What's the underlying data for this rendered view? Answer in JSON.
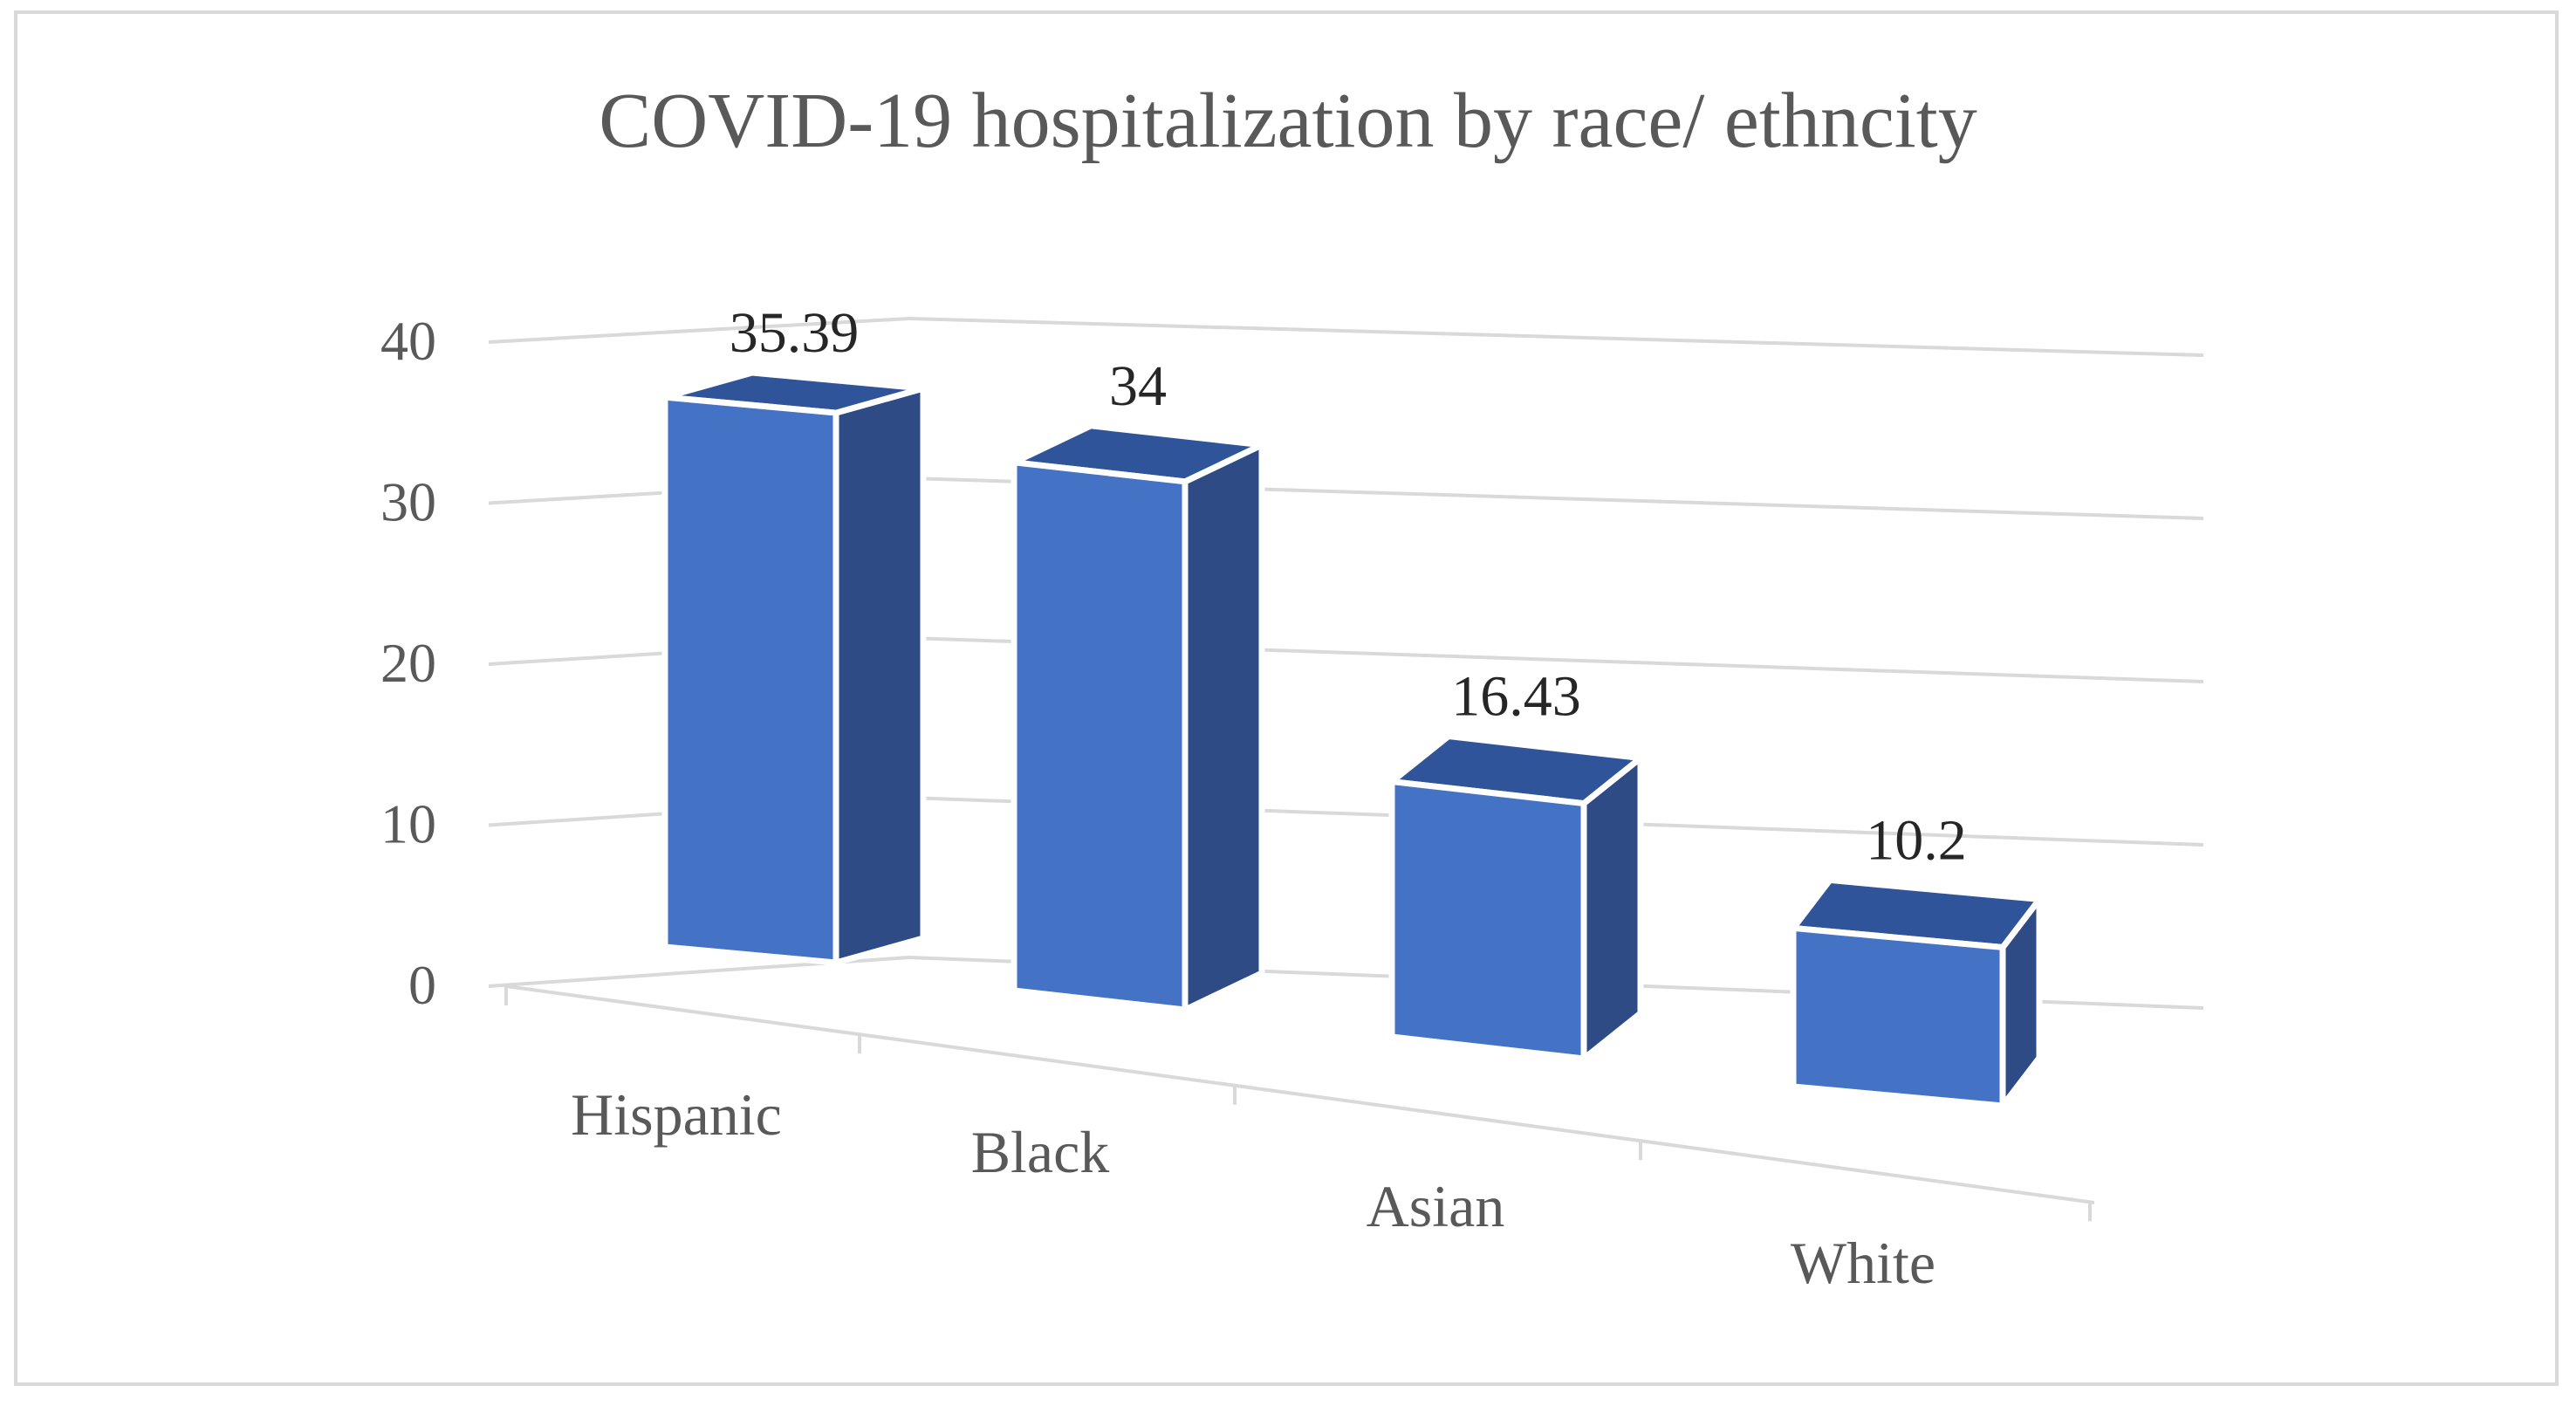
{
  "chart_data": {
    "type": "bar",
    "style": "3d-column",
    "title": "COVID-19 hospitalization by race/ ethncity",
    "categories": [
      "Hispanic",
      "Black",
      "Asian",
      "White"
    ],
    "values": [
      35.39,
      34,
      16.43,
      10.2
    ],
    "data_labels": [
      "35.39",
      "34",
      "16.43",
      "10.2"
    ],
    "yticks": [
      "0",
      "10",
      "20",
      "30",
      "40"
    ],
    "ylim": [
      0,
      40
    ],
    "xlabel": "",
    "ylabel": "",
    "grid": true,
    "legend": "none",
    "colors": {
      "front": "#4472c4",
      "side": "#2e4b85",
      "top": "#30549a",
      "edge": "#ffffff",
      "grid": "#d9d9d9",
      "axis_text": "#595959",
      "label_text": "#262626"
    }
  }
}
